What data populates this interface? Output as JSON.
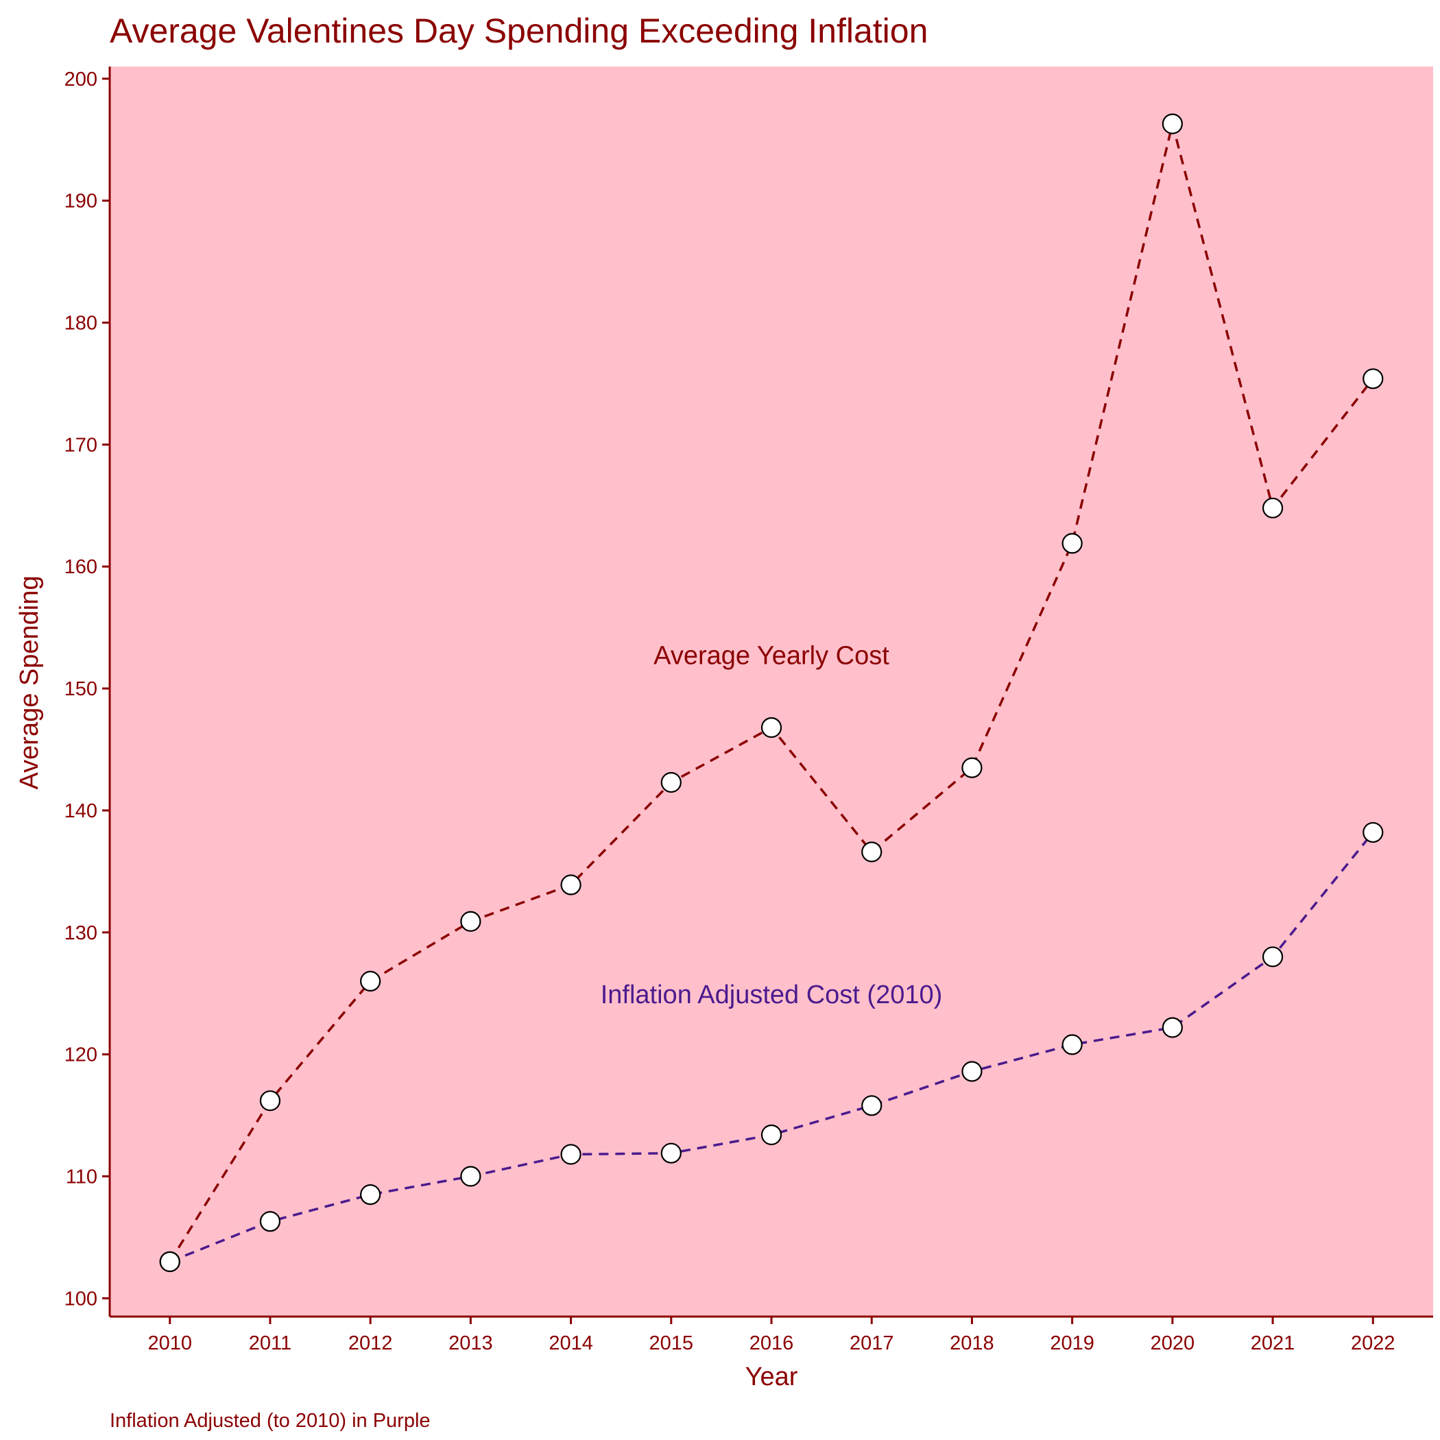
{
  "colors": {
    "text": "#8B0000",
    "axis": "#8B0000",
    "panel_background": "#FFC0CB",
    "page_background": "#FFFFFF",
    "marker_fill": "#FFFFFF",
    "marker_stroke": "#000000"
  },
  "chart_data": {
    "type": "line",
    "title": "Average Valentines Day Spending Exceeding Inflation",
    "xlabel": "Year",
    "ylabel": "Average Spending",
    "caption": "Inflation Adjusted (to 2010) in Purple",
    "x": [
      2010,
      2011,
      2012,
      2013,
      2014,
      2015,
      2016,
      2017,
      2018,
      2019,
      2020,
      2021,
      2022
    ],
    "xlim": [
      2009.4,
      2022.6
    ],
    "ylim": [
      98.5,
      201
    ],
    "yticks": [
      100,
      110,
      120,
      130,
      140,
      150,
      160,
      170,
      180,
      190,
      200
    ],
    "grid": false,
    "legend": "none",
    "series": [
      {
        "color": "#8B0000",
        "line_style": "dashed",
        "marker": "open-circle",
        "values": [
          103.0,
          116.2,
          126.0,
          130.9,
          133.9,
          142.3,
          146.8,
          136.6,
          143.5,
          161.9,
          196.3,
          164.8,
          175.4
        ]
      },
      {
        "color": "#4B1A8E",
        "line_style": "dashed",
        "marker": "open-circle",
        "values": [
          103.0,
          106.3,
          108.5,
          110.0,
          111.8,
          111.9,
          113.4,
          115.8,
          118.6,
          120.8,
          122.2,
          128.0,
          138.2
        ]
      }
    ],
    "annotations": [
      {
        "text": "Average Yearly Cost",
        "x": 2016,
        "y": 152,
        "color": "#8B0000"
      },
      {
        "text": "Inflation Adjusted Cost (2010)",
        "x": 2016,
        "y": 124.2,
        "color": "#4B1A8E"
      }
    ]
  }
}
